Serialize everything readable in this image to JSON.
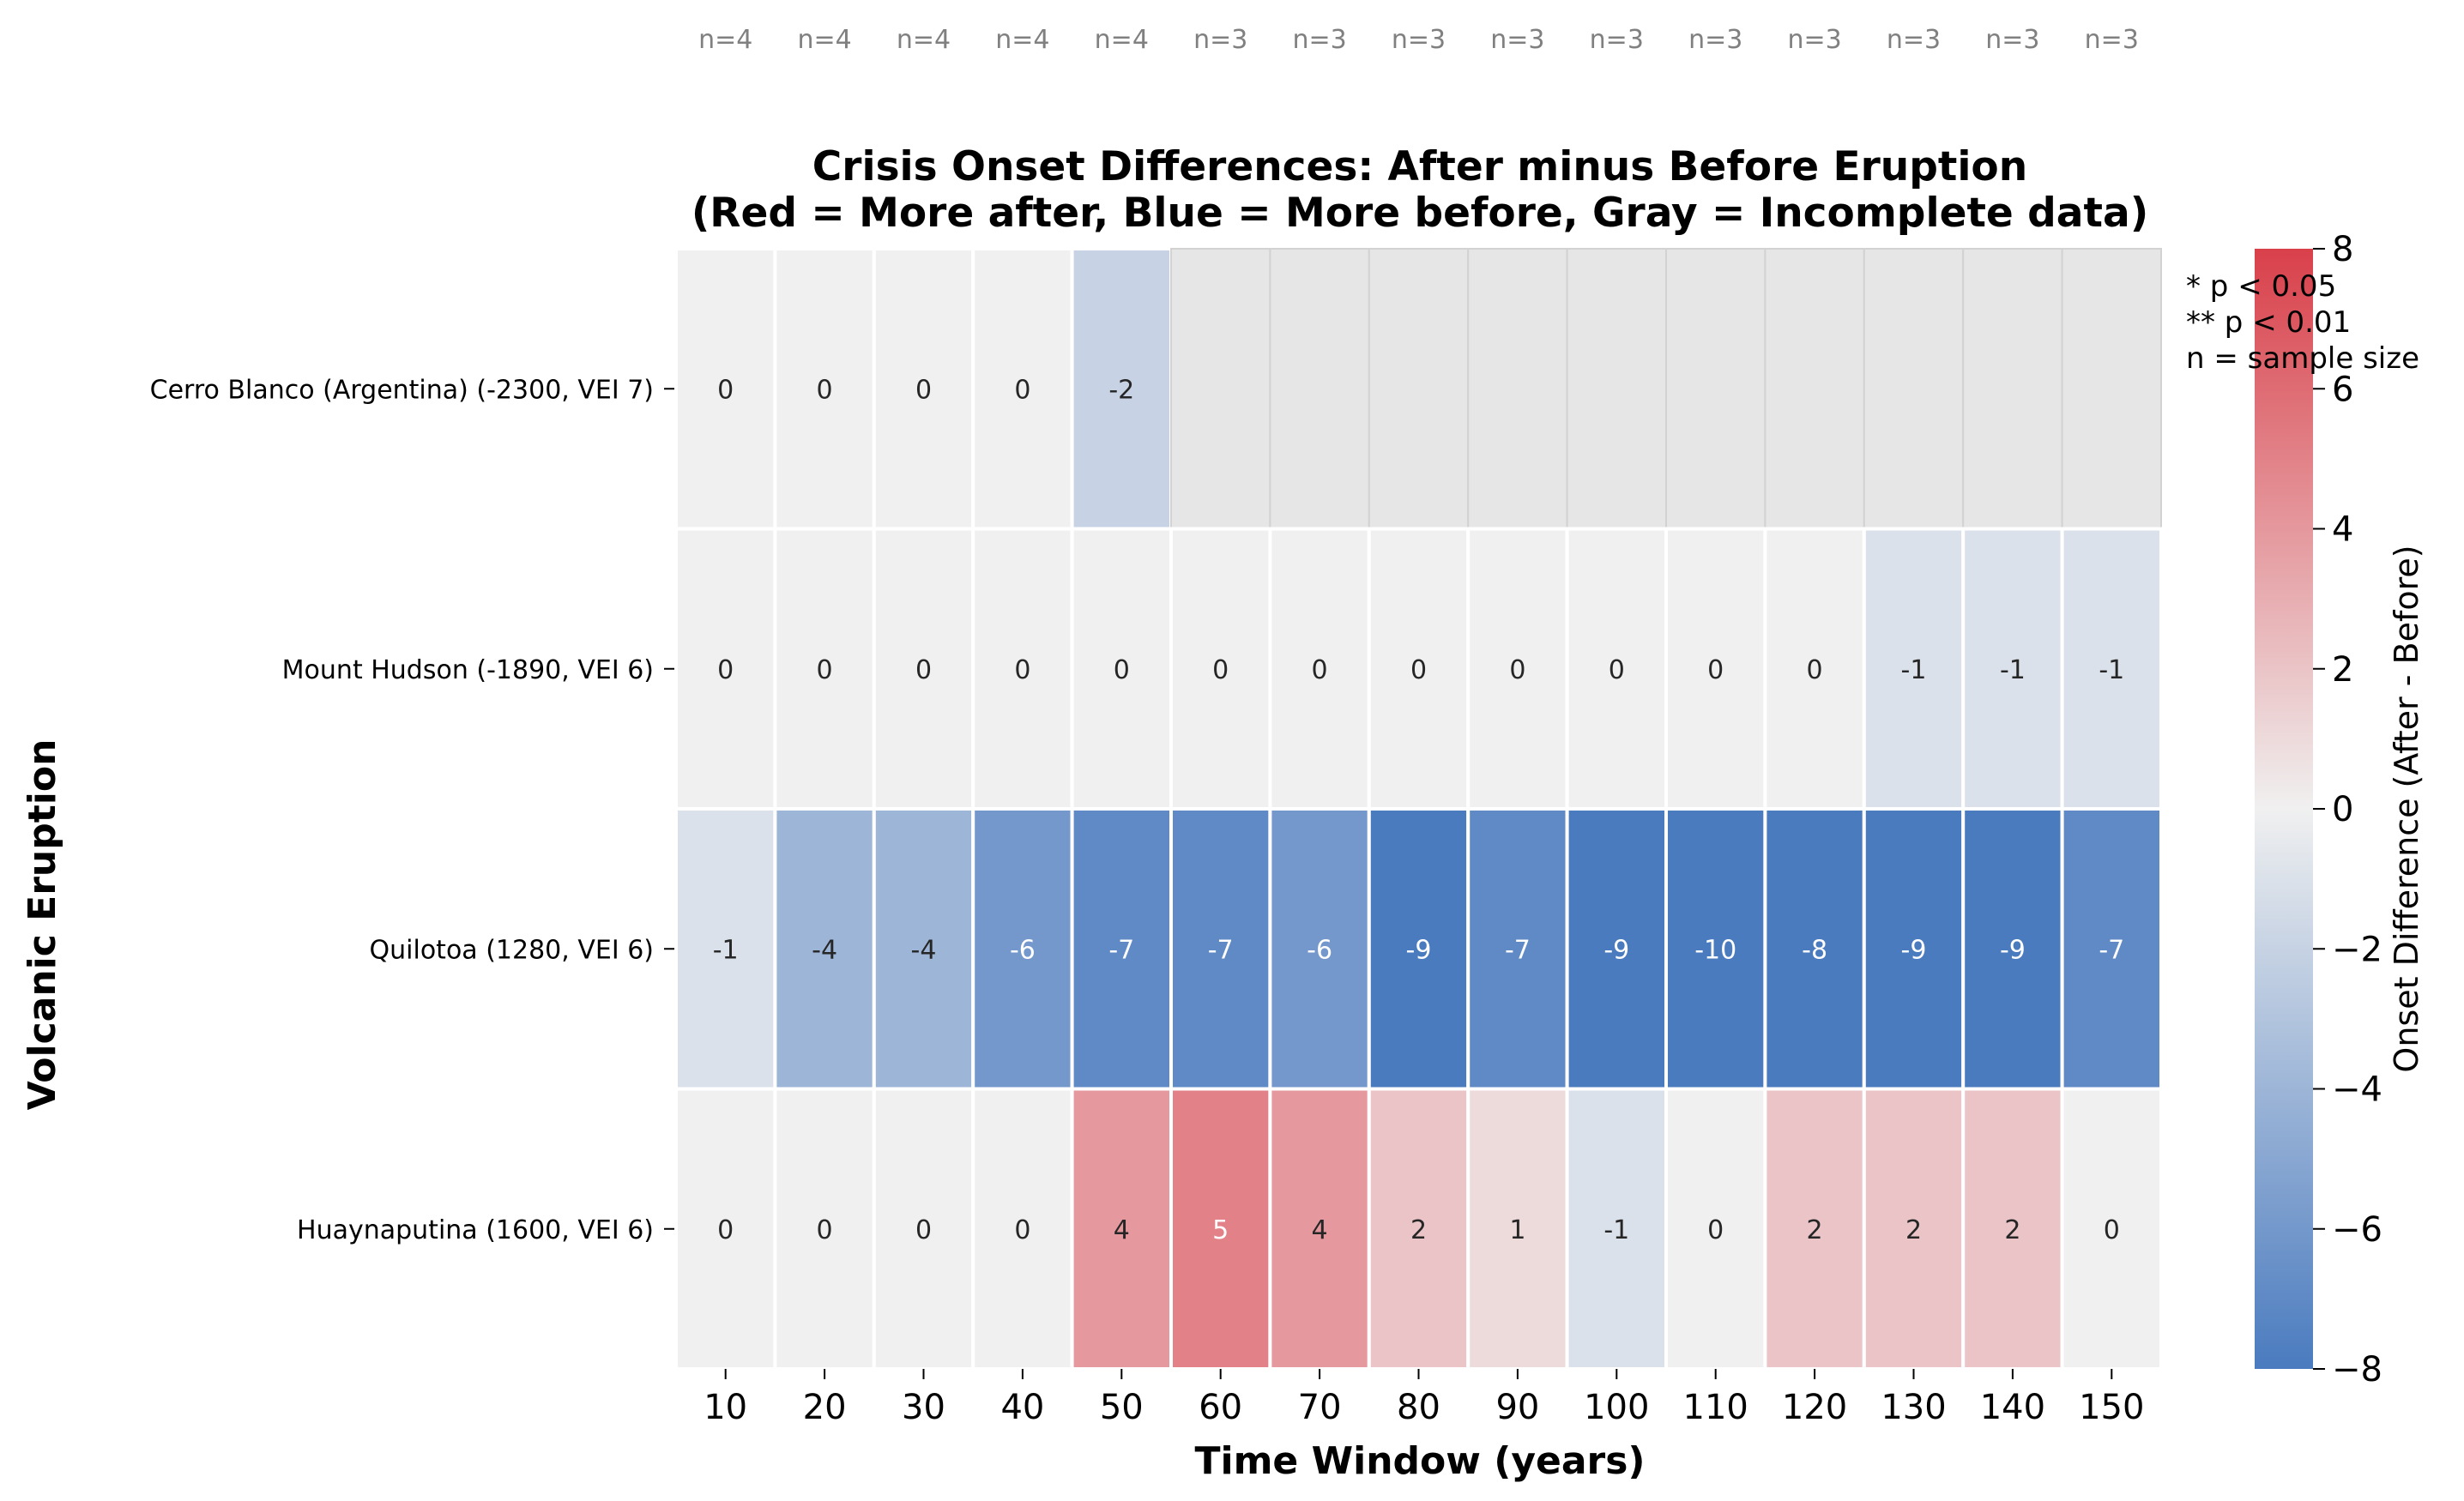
{
  "chart_data": {
    "type": "heatmap",
    "title_line1": "Crisis Onset Differences: After minus Before Eruption",
    "title_line2": "(Red = More after, Blue = More before, Gray = Incomplete data)",
    "xlabel": "Time Window (years)",
    "ylabel": "Volcanic Eruption",
    "x": [
      10,
      20,
      30,
      40,
      50,
      60,
      70,
      80,
      90,
      100,
      110,
      120,
      130,
      140,
      150
    ],
    "sample_sizes": [
      "n=4",
      "n=4",
      "n=4",
      "n=4",
      "n=4",
      "n=3",
      "n=3",
      "n=3",
      "n=3",
      "n=3",
      "n=3",
      "n=3",
      "n=3",
      "n=3",
      "n=3"
    ],
    "rows": [
      {
        "label": "Cerro Blanco (Argentina)  (-2300, VEI 7)",
        "values": [
          0,
          0,
          0,
          0,
          -2,
          null,
          null,
          null,
          null,
          null,
          null,
          null,
          null,
          null,
          null
        ]
      },
      {
        "label": "Mount Hudson  (-1890, VEI 6)",
        "values": [
          0,
          0,
          0,
          0,
          0,
          0,
          0,
          0,
          0,
          0,
          0,
          0,
          -1,
          -1,
          -1
        ]
      },
      {
        "label": "Quilotoa  (1280, VEI 6)",
        "values": [
          -1,
          -4,
          -4,
          -6,
          -7,
          -7,
          -6,
          -9,
          -7,
          -9,
          -10,
          -8,
          -9,
          -9,
          -7
        ]
      },
      {
        "label": "Huaynaputina  (1600, VEI 6)",
        "values": [
          0,
          0,
          0,
          0,
          4,
          5,
          4,
          2,
          1,
          -1,
          0,
          2,
          2,
          2,
          0
        ]
      }
    ],
    "colorbar": {
      "label": "Onset Difference (After - Before)",
      "range": [
        -8,
        8
      ],
      "ticks": [
        8,
        6,
        4,
        2,
        0,
        -2,
        -4,
        -6,
        -8
      ],
      "tick_labels": [
        "8",
        "6",
        "4",
        "2",
        "0",
        "−2",
        "−4",
        "−6",
        "−8"
      ],
      "color_low": "#4a7bbf",
      "color_mid": "#f0f0f0",
      "color_high": "#d9404a"
    },
    "missing_color": "#e6e6e6",
    "legend_notes": [
      "* p < 0.05",
      "** p < 0.01",
      "n = sample size"
    ]
  }
}
